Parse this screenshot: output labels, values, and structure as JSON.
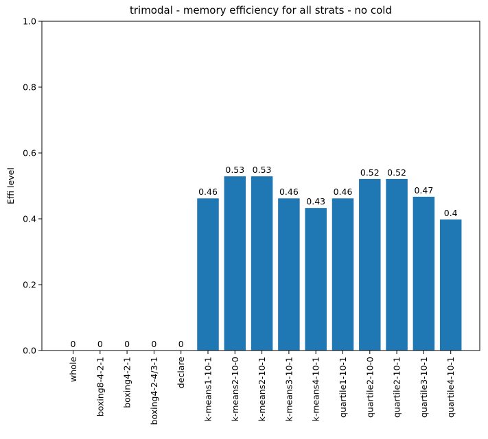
{
  "chart_data": {
    "type": "bar",
    "title": "trimodal - memory efficiency for all strats - no cold",
    "xlabel": "",
    "ylabel": "Effi level",
    "ylim": [
      0,
      1.0
    ],
    "yticks": [
      "0.0",
      "0.2",
      "0.4",
      "0.6",
      "0.8",
      "1.0"
    ],
    "grid": false,
    "bar_color": "#1f77b4",
    "categories": [
      "whole",
      "boxing8-4-2-1",
      "boxing4-2-1",
      "boxing4-2-4/3-1",
      "declare",
      "k-means1-10-1",
      "k-means2-10-0",
      "k-means2-10-1",
      "k-means3-10-1",
      "k-means4-10-1",
      "quartile1-10-1",
      "quartile2-10-0",
      "quartile2-10-1",
      "quartile3-10-1",
      "quartile4-10-1"
    ],
    "values": [
      0,
      0,
      0,
      0,
      0,
      0.462,
      0.529,
      0.529,
      0.462,
      0.433,
      0.462,
      0.521,
      0.521,
      0.467,
      0.398
    ],
    "data_labels": [
      "0",
      "0",
      "0",
      "0",
      "0",
      "0.46",
      "0.53",
      "0.53",
      "0.46",
      "0.43",
      "0.46",
      "0.52",
      "0.52",
      "0.47",
      "0.4"
    ]
  }
}
